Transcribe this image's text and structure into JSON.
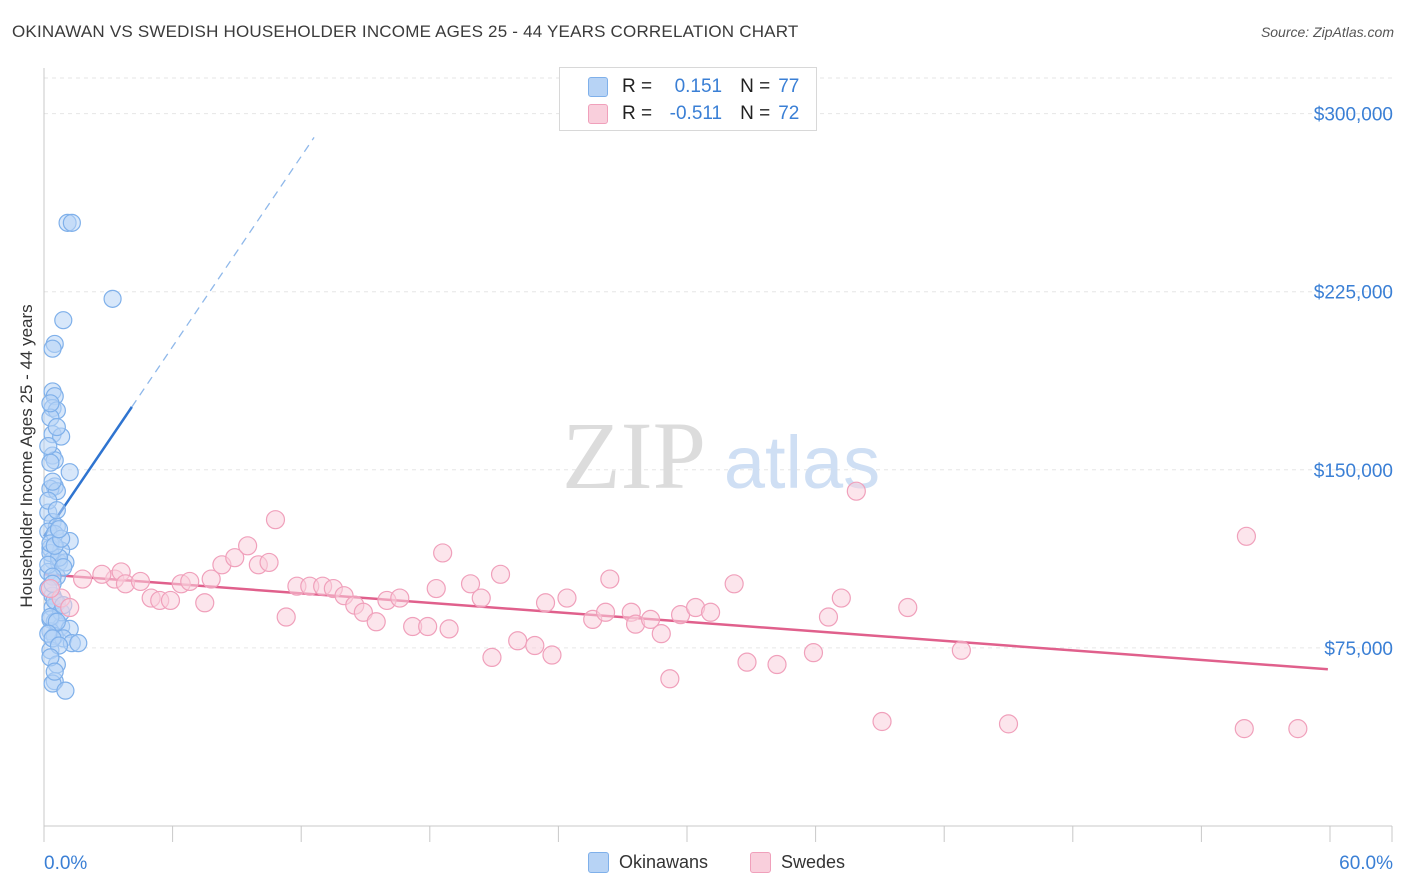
{
  "title": "OKINAWAN VS SWEDISH HOUSEHOLDER INCOME AGES 25 - 44 YEARS CORRELATION CHART",
  "source": "Source: ZipAtlas.com",
  "watermark": {
    "zip": "ZIP",
    "atlas": "atlas"
  },
  "legend_top": [
    {
      "r_label": "R =",
      "r_value": "0.151",
      "n_label": "N =",
      "n_value": "77"
    },
    {
      "r_label": "R =",
      "r_value": "-0.511",
      "n_label": "N =",
      "n_value": "72"
    }
  ],
  "legend_bottom": [
    {
      "label": "Okinawans"
    },
    {
      "label": "Swedes"
    }
  ],
  "chart_data": {
    "type": "scatter",
    "title": "OKINAWAN VS SWEDISH HOUSEHOLDER INCOME AGES 25 - 44 YEARS CORRELATION CHART",
    "xlabel": "",
    "ylabel": "Householder Income Ages 25 - 44 years",
    "xlim": [
      0,
      60
    ],
    "ylim": [
      0,
      315000
    ],
    "x_tick_labels": [
      {
        "value": 0,
        "label": "0.0%"
      },
      {
        "value": 60,
        "label": "60.0%"
      }
    ],
    "y_tick_labels": [
      {
        "value": 75000,
        "label": "$75,000"
      },
      {
        "value": 150000,
        "label": "$150,000"
      },
      {
        "value": 225000,
        "label": "$225,000"
      },
      {
        "value": 300000,
        "label": "$300,000"
      }
    ],
    "grid": true,
    "series": [
      {
        "name": "Okinawans",
        "color": "#7fb0ea",
        "fill": "#b7d3f5",
        "trend_color": "#2f74d0",
        "r": 0.151,
        "n": 77,
        "trend": {
          "solid": [
            [
              0,
              122000
            ],
            [
              4.1,
              176500
            ]
          ],
          "dashed": [
            [
              4.1,
              176500
            ],
            [
              12.6,
              290000
            ]
          ]
        },
        "points": [
          [
            1.1,
            254000
          ],
          [
            1.3,
            254000
          ],
          [
            3.2,
            222000
          ],
          [
            0.9,
            213000
          ],
          [
            0.5,
            203000
          ],
          [
            0.4,
            201000
          ],
          [
            0.4,
            183000
          ],
          [
            0.5,
            181000
          ],
          [
            0.4,
            176000
          ],
          [
            0.6,
            175000
          ],
          [
            0.3,
            172000
          ],
          [
            0.4,
            165000
          ],
          [
            0.8,
            164000
          ],
          [
            0.4,
            156000
          ],
          [
            0.5,
            154000
          ],
          [
            0.3,
            153000
          ],
          [
            1.2,
            149000
          ],
          [
            0.5,
            143000
          ],
          [
            0.3,
            142000
          ],
          [
            0.6,
            141000
          ],
          [
            0.2,
            132000
          ],
          [
            0.4,
            128000
          ],
          [
            0.6,
            126000
          ],
          [
            0.2,
            124000
          ],
          [
            0.5,
            123000
          ],
          [
            1.2,
            120000
          ],
          [
            0.3,
            117000
          ],
          [
            0.8,
            116000
          ],
          [
            0.4,
            112000
          ],
          [
            0.7,
            111000
          ],
          [
            1.0,
            111000
          ],
          [
            0.2,
            107000
          ],
          [
            0.6,
            105000
          ],
          [
            0.4,
            97000
          ],
          [
            0.6,
            94000
          ],
          [
            0.4,
            92000
          ],
          [
            0.3,
            87000
          ],
          [
            0.5,
            86000
          ],
          [
            0.8,
            84000
          ],
          [
            1.2,
            83000
          ],
          [
            0.3,
            82000
          ],
          [
            0.5,
            80000
          ],
          [
            0.9,
            79000
          ],
          [
            1.3,
            77000
          ],
          [
            1.6,
            77000
          ],
          [
            0.3,
            74000
          ],
          [
            0.6,
            68000
          ],
          [
            0.5,
            61000
          ],
          [
            0.4,
            60000
          ],
          [
            1.0,
            57000
          ],
          [
            0.3,
            115000
          ],
          [
            0.7,
            113000
          ],
          [
            0.2,
            110000
          ],
          [
            0.9,
            109000
          ],
          [
            0.4,
            105000
          ],
          [
            0.2,
            100000
          ],
          [
            0.5,
            95000
          ],
          [
            0.8,
            90000
          ],
          [
            0.3,
            88000
          ],
          [
            0.6,
            86000
          ],
          [
            0.2,
            81000
          ],
          [
            0.4,
            79000
          ],
          [
            0.7,
            76000
          ],
          [
            0.3,
            71000
          ],
          [
            0.5,
            65000
          ],
          [
            0.2,
            137000
          ],
          [
            0.6,
            133000
          ],
          [
            0.3,
            119000
          ],
          [
            0.5,
            118000
          ],
          [
            0.8,
            121000
          ],
          [
            0.4,
            145000
          ],
          [
            0.2,
            160000
          ],
          [
            0.6,
            168000
          ],
          [
            0.3,
            178000
          ],
          [
            0.7,
            125000
          ],
          [
            0.4,
            102000
          ],
          [
            0.9,
            93000
          ]
        ]
      },
      {
        "name": "Swedes",
        "color": "#f0a0bb",
        "fill": "#f9cfdc",
        "trend_color": "#e0608c",
        "r": -0.511,
        "n": 72,
        "trend": {
          "solid": [
            [
              0,
              106000
            ],
            [
              59.9,
              66000
            ]
          ]
        },
        "points": [
          [
            0.8,
            96000
          ],
          [
            1.8,
            104000
          ],
          [
            3.3,
            104000
          ],
          [
            2.7,
            106000
          ],
          [
            3.6,
            107000
          ],
          [
            3.8,
            102000
          ],
          [
            4.5,
            103000
          ],
          [
            5.0,
            96000
          ],
          [
            5.4,
            95000
          ],
          [
            5.9,
            95000
          ],
          [
            6.4,
            102000
          ],
          [
            6.8,
            103000
          ],
          [
            7.5,
            94000
          ],
          [
            7.8,
            104000
          ],
          [
            8.3,
            110000
          ],
          [
            8.9,
            113000
          ],
          [
            9.5,
            118000
          ],
          [
            10.0,
            110000
          ],
          [
            10.5,
            111000
          ],
          [
            10.8,
            129000
          ],
          [
            11.3,
            88000
          ],
          [
            11.8,
            101000
          ],
          [
            12.4,
            101000
          ],
          [
            13.0,
            101000
          ],
          [
            13.5,
            100000
          ],
          [
            14.0,
            97000
          ],
          [
            14.5,
            93000
          ],
          [
            14.9,
            90000
          ],
          [
            15.5,
            86000
          ],
          [
            16.0,
            95000
          ],
          [
            16.6,
            96000
          ],
          [
            17.2,
            84000
          ],
          [
            17.9,
            84000
          ],
          [
            18.3,
            100000
          ],
          [
            18.9,
            83000
          ],
          [
            18.6,
            115000
          ],
          [
            19.9,
            102000
          ],
          [
            20.4,
            96000
          ],
          [
            20.9,
            71000
          ],
          [
            21.3,
            106000
          ],
          [
            22.1,
            78000
          ],
          [
            22.9,
            76000
          ],
          [
            23.4,
            94000
          ],
          [
            23.7,
            72000
          ],
          [
            24.4,
            96000
          ],
          [
            25.6,
            87000
          ],
          [
            26.2,
            90000
          ],
          [
            26.4,
            104000
          ],
          [
            27.4,
            90000
          ],
          [
            27.6,
            85000
          ],
          [
            28.3,
            87000
          ],
          [
            28.8,
            81000
          ],
          [
            29.2,
            62000
          ],
          [
            29.7,
            89000
          ],
          [
            30.4,
            92000
          ],
          [
            31.1,
            90000
          ],
          [
            32.2,
            102000
          ],
          [
            32.8,
            69000
          ],
          [
            34.2,
            68000
          ],
          [
            35.9,
            73000
          ],
          [
            36.6,
            88000
          ],
          [
            37.2,
            96000
          ],
          [
            37.9,
            141000
          ],
          [
            39.1,
            44000
          ],
          [
            40.3,
            92000
          ],
          [
            42.8,
            74000
          ],
          [
            45.0,
            43000
          ],
          [
            56.1,
            122000
          ],
          [
            56.0,
            41000
          ],
          [
            58.5,
            41000
          ],
          [
            0.3,
            100000
          ],
          [
            1.2,
            92000
          ]
        ]
      }
    ]
  }
}
